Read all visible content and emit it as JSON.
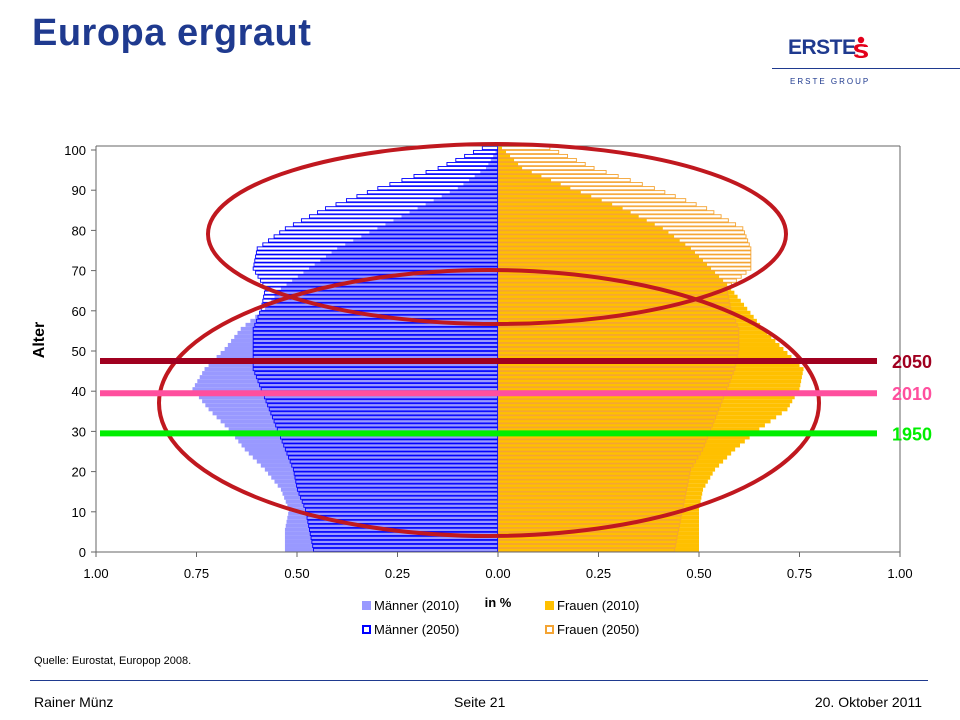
{
  "header": {
    "title": "Europa ergraut"
  },
  "logo": {
    "word": "ERSTE",
    "sub": "ERSTE GROUP"
  },
  "colors": {
    "brand": "#1f3a8f",
    "men2010": "#9999ff",
    "men2050": "#0000ff",
    "women2010": "#ffc000",
    "women2050": "#f4a433",
    "ellipse": "#c0181f",
    "line1950": "#00ee00",
    "line2010": "#ff4f9e",
    "line2050": "#a00020"
  },
  "chart_data": {
    "type": "bar",
    "orientation": "horizontal-pyramid",
    "ylabel": "Alter",
    "xlabel": "in %",
    "x_ticks": [
      "1.00",
      "0.75",
      "0.50",
      "0.25",
      "0.00",
      "0.25",
      "0.50",
      "0.75",
      "1.00"
    ],
    "y_ticks": [
      "0",
      "10",
      "20",
      "30",
      "40",
      "50",
      "60",
      "70",
      "80",
      "90",
      "100"
    ],
    "xlim": [
      -1,
      1
    ],
    "ylim": [
      0,
      100
    ],
    "age_keys": [
      0,
      5,
      10,
      15,
      20,
      25,
      30,
      35,
      40,
      45,
      50,
      55,
      60,
      65,
      70,
      75,
      80,
      85,
      90,
      95,
      100
    ],
    "series": [
      {
        "name": "Männer (2010)",
        "side": "left",
        "style": "filled",
        "values": [
          0.53,
          0.53,
          0.52,
          0.54,
          0.58,
          0.63,
          0.67,
          0.72,
          0.76,
          0.73,
          0.68,
          0.64,
          0.58,
          0.54,
          0.47,
          0.4,
          0.3,
          0.2,
          0.1,
          0.03,
          0.0
        ]
      },
      {
        "name": "Männer (2050)",
        "side": "left",
        "style": "outline",
        "values": [
          0.46,
          0.47,
          0.48,
          0.5,
          0.51,
          0.53,
          0.55,
          0.57,
          0.59,
          0.61,
          0.61,
          0.61,
          0.59,
          0.58,
          0.61,
          0.6,
          0.53,
          0.43,
          0.3,
          0.15,
          0.04
        ]
      },
      {
        "name": "Frauen (2010)",
        "side": "right",
        "style": "filled",
        "values": [
          0.5,
          0.5,
          0.5,
          0.51,
          0.54,
          0.59,
          0.65,
          0.72,
          0.75,
          0.76,
          0.71,
          0.66,
          0.62,
          0.58,
          0.53,
          0.48,
          0.41,
          0.31,
          0.18,
          0.06,
          0.01
        ]
      },
      {
        "name": "Frauen (2050)",
        "side": "right",
        "style": "outline",
        "values": [
          0.44,
          0.45,
          0.46,
          0.47,
          0.48,
          0.51,
          0.53,
          0.55,
          0.57,
          0.59,
          0.6,
          0.6,
          0.58,
          0.57,
          0.63,
          0.63,
          0.61,
          0.52,
          0.39,
          0.24,
          0.13
        ]
      }
    ],
    "reference_lines": [
      {
        "label": "2050",
        "age": 47.5,
        "color": "#a00020"
      },
      {
        "label": "2010",
        "age": 39.5,
        "color": "#ff4f9e"
      },
      {
        "label": "1950",
        "age": 29.5,
        "color": "#00ee00"
      }
    ],
    "legend": {
      "position": "bottom-center",
      "columns": 2
    }
  },
  "source": "Quelle: Eurostat, Europop 2008.",
  "footer": {
    "author": "Rainer Münz",
    "page": "Seite 21",
    "date": "20. Oktober 2011"
  }
}
